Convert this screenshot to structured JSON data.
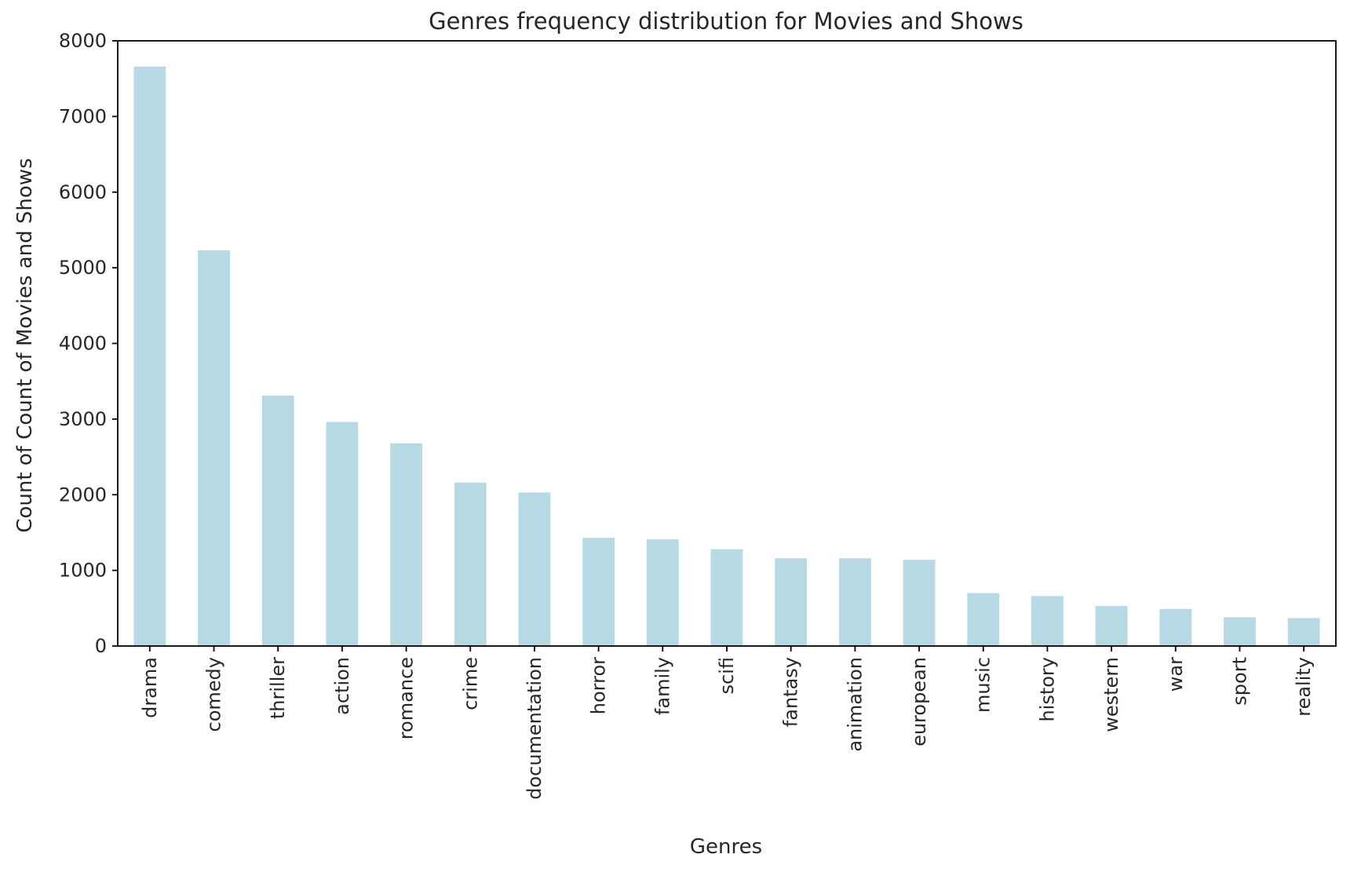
{
  "chart_data": {
    "type": "bar",
    "title": "Genres frequency distribution for Movies and Shows",
    "xlabel": "Genres",
    "ylabel": "Count of Count of Movies and Shows",
    "categories": [
      "drama",
      "comedy",
      "thriller",
      "action",
      "romance",
      "crime",
      "documentation",
      "horror",
      "family",
      "scifi",
      "fantasy",
      "animation",
      "european",
      "music",
      "history",
      "western",
      "war",
      "sport",
      "reality"
    ],
    "values": [
      7660,
      5230,
      3310,
      2960,
      2680,
      2160,
      2030,
      1430,
      1410,
      1280,
      1160,
      1160,
      1140,
      700,
      660,
      530,
      490,
      380,
      370
    ],
    "ylim": [
      0,
      8000
    ],
    "yticks": [
      0,
      1000,
      2000,
      3000,
      4000,
      5000,
      6000,
      7000,
      8000
    ],
    "bar_color": "#b7d9e4",
    "grid": false,
    "legend": "none"
  }
}
